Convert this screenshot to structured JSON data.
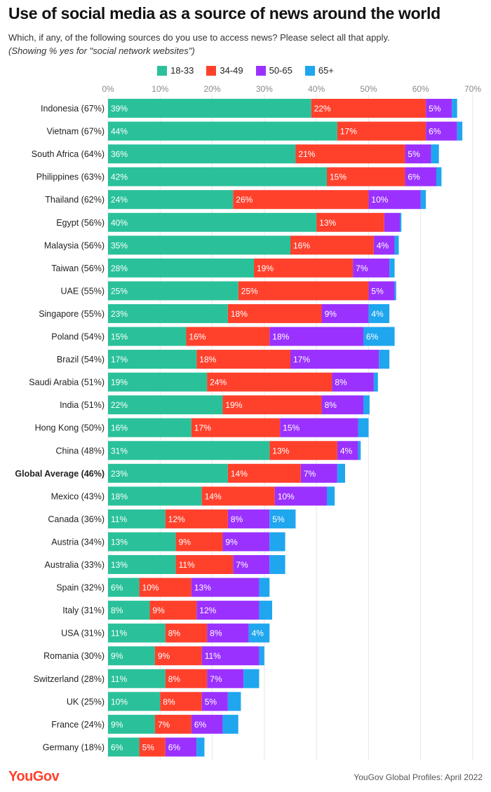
{
  "header": {
    "title": "Use of social media as a source of news around the world",
    "subtitle": "Which, if any, of the following sources do you use to access news? Please select all that apply.",
    "note": "(Showing % yes for \"social network websites\")"
  },
  "footer": {
    "logo": "YouGov",
    "source": "YouGov Global Profiles: April 2022"
  },
  "colors": {
    "18-33": "#2ac19a",
    "34-49": "#ff412c",
    "50-65": "#9b31ff",
    "65+": "#1fa6ee"
  },
  "chart_data": {
    "type": "bar",
    "orientation": "horizontal",
    "stacked": true,
    "xlim": [
      0,
      70
    ],
    "xticks": [
      0,
      10,
      20,
      30,
      40,
      50,
      60,
      70
    ],
    "xtick_labels": [
      "0%",
      "10%",
      "20%",
      "30%",
      "40%",
      "50%",
      "60%",
      "70%"
    ],
    "legend_position": "top-center",
    "highlight_category": "Global Average (46%)",
    "categories": [
      "Indonesia (67%)",
      "Vietnam (67%)",
      "South Africa (64%)",
      "Philippines (63%)",
      "Thailand (62%)",
      "Egypt (56%)",
      "Malaysia (56%)",
      "Taiwan (56%)",
      "UAE (55%)",
      "Singapore (55%)",
      "Poland (54%)",
      "Brazil (54%)",
      "Saudi Arabia (51%)",
      "India (51%)",
      "Hong Kong (50%)",
      "China (48%)",
      "Global Average (46%)",
      "Mexico (43%)",
      "Canada (36%)",
      "Austria (34%)",
      "Australia (33%)",
      "Spain (32%)",
      "Italy (31%)",
      "USA (31%)",
      "Romania (30%)",
      "Switzerland (28%)",
      "UK (25%)",
      "France (24%)",
      "Germany (18%)"
    ],
    "series": [
      {
        "name": "18-33",
        "values": [
          39,
          44,
          36,
          42,
          24,
          40,
          35,
          28,
          25,
          23,
          15,
          17,
          19,
          22,
          16,
          31,
          23,
          18,
          11,
          13,
          13,
          6,
          8,
          11,
          9,
          11,
          10,
          9,
          6
        ],
        "labels": [
          "39%",
          "44%",
          "36%",
          "42%",
          "24%",
          "40%",
          "35%",
          "28%",
          "25%",
          "23%",
          "15%",
          "17%",
          "19%",
          "22%",
          "16%",
          "31%",
          "23%",
          "18%",
          "11%",
          "13%",
          "13%",
          "6%",
          "8%",
          "11%",
          "9%",
          "11%",
          "10%",
          "9%",
          "6%"
        ]
      },
      {
        "name": "34-49",
        "values": [
          22,
          17,
          21,
          15,
          26,
          13,
          16,
          19,
          25,
          18,
          16,
          18,
          24,
          19,
          17,
          13,
          14,
          14,
          12,
          9,
          11,
          10,
          9,
          8,
          9,
          8,
          8,
          7,
          5
        ],
        "labels": [
          "22%",
          "17%",
          "21%",
          "15%",
          "26%",
          "13%",
          "16%",
          "19%",
          "25%",
          "18%",
          "16%",
          "18%",
          "24%",
          "19%",
          "17%",
          "13%",
          "14%",
          "14%",
          "12%",
          "9%",
          "11%",
          "10%",
          "9%",
          "8%",
          "9%",
          "8%",
          "8%",
          "7%",
          "5%"
        ]
      },
      {
        "name": "50-65",
        "values": [
          5,
          6,
          5,
          6,
          10,
          3,
          4,
          7,
          5,
          9,
          18,
          17,
          8,
          8,
          15,
          4,
          7,
          10,
          8,
          9,
          7,
          13,
          12,
          8,
          11,
          7,
          5,
          6,
          6
        ],
        "labels": [
          "5%",
          "6%",
          "5%",
          "6%",
          "10%",
          "",
          "4%",
          "7%",
          "5%",
          "9%",
          "18%",
          "17%",
          "8%",
          "8%",
          "15%",
          "4%",
          "7%",
          "10%",
          "8%",
          "9%",
          "7%",
          "13%",
          "12%",
          "8%",
          "11%",
          "7%",
          "5%",
          "6%",
          "6%"
        ]
      },
      {
        "name": "65+",
        "values": [
          1,
          1,
          1.5,
          1,
          1,
          0.3,
          0.8,
          1,
          0.3,
          4,
          6,
          2,
          0.8,
          1.2,
          2,
          0.5,
          1.5,
          1.5,
          5,
          3,
          3,
          2,
          2.5,
          4,
          1,
          3,
          2.5,
          3,
          1.5
        ],
        "labels": [
          "",
          "",
          "",
          "",
          "",
          "",
          "",
          "",
          "",
          "4%",
          "6%",
          "",
          "",
          "",
          "",
          "",
          "",
          "",
          "5%",
          "",
          "",
          "",
          "",
          "4%",
          "",
          "",
          "",
          "",
          ""
        ]
      }
    ]
  }
}
